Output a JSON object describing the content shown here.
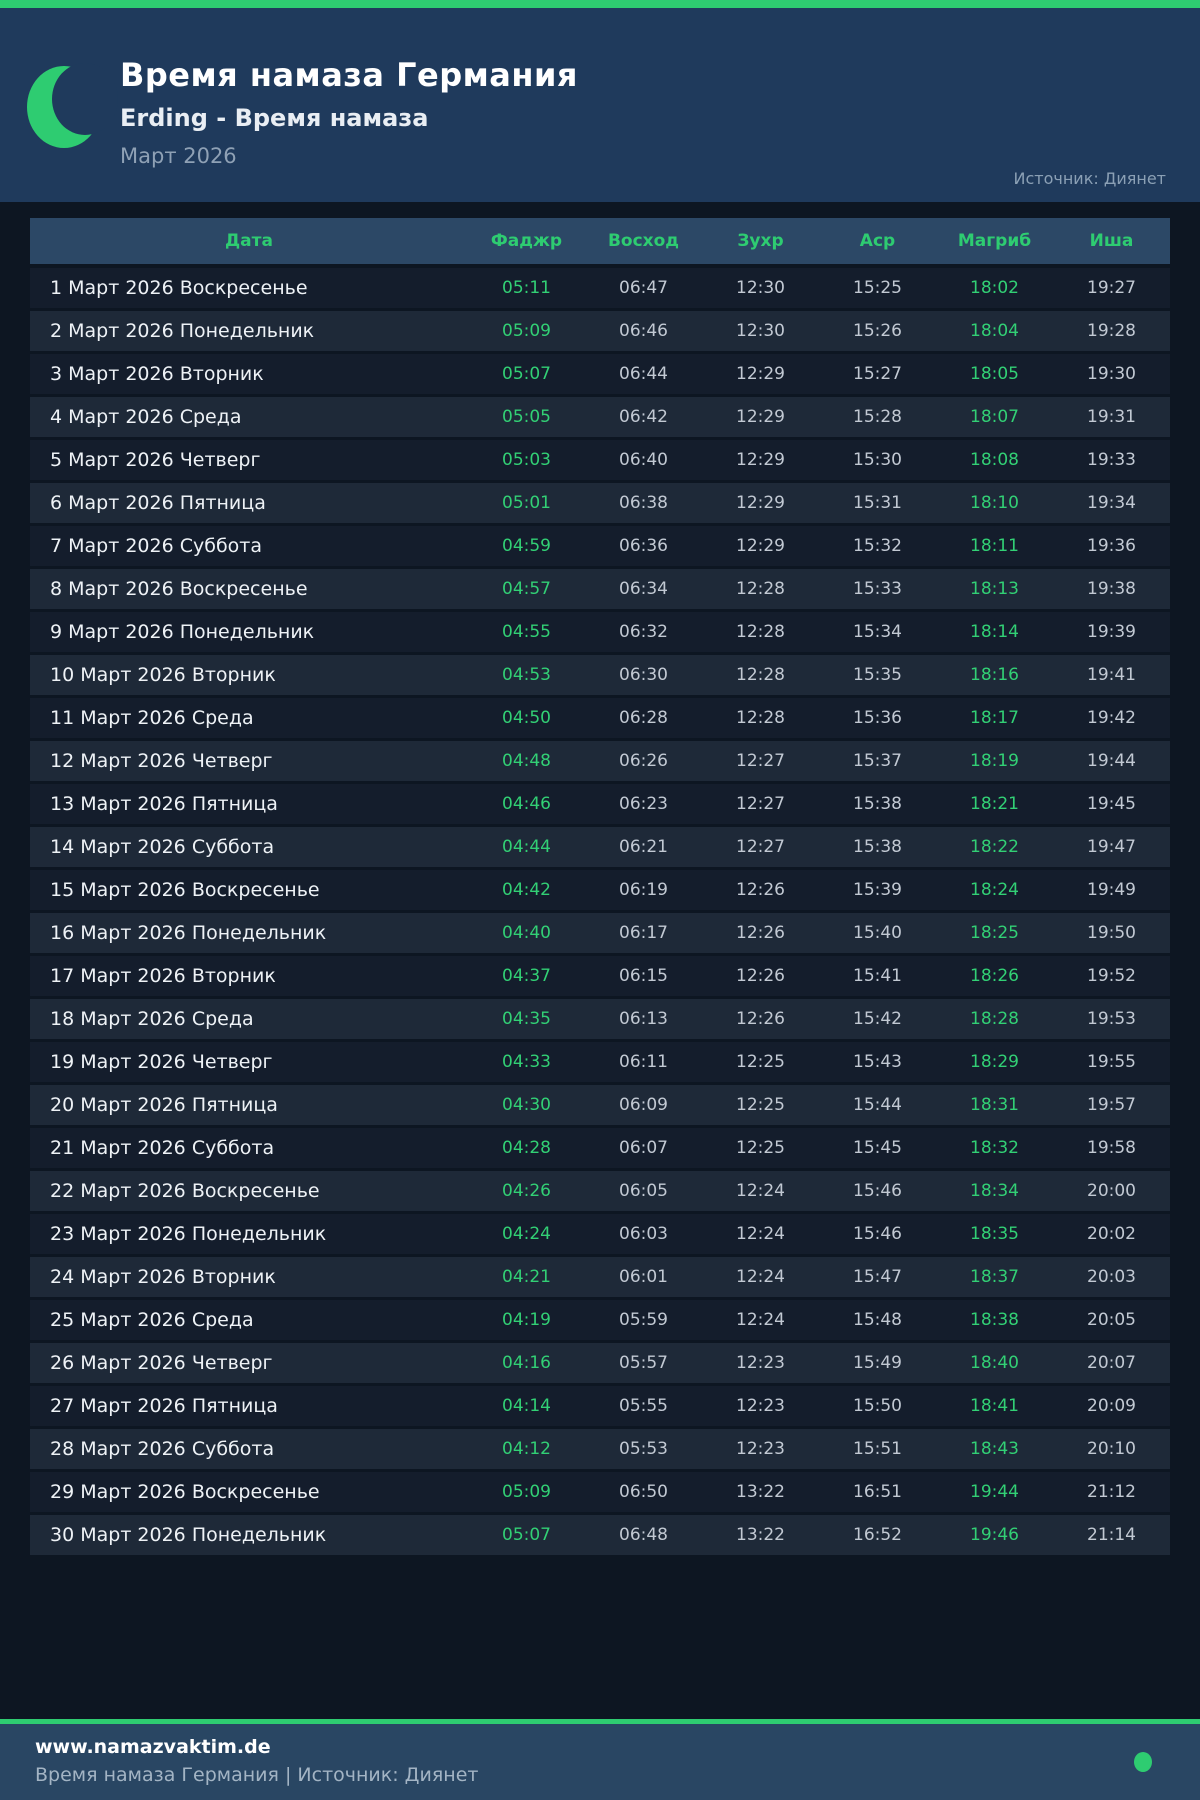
{
  "header": {
    "title": "Время намаза Германия",
    "subtitle": "Erding - Время намаза",
    "month": "Март 2026",
    "source": "Источник: Диянет"
  },
  "table": {
    "columns": [
      "Дата",
      "Фаджр",
      "Восход",
      "Зухр",
      "Аср",
      "Магриб",
      "Иша"
    ],
    "rows": [
      [
        "1 Март 2026 Воскресенье",
        "05:11",
        "06:47",
        "12:30",
        "15:25",
        "18:02",
        "19:27"
      ],
      [
        "2 Март 2026 Понедельник",
        "05:09",
        "06:46",
        "12:30",
        "15:26",
        "18:04",
        "19:28"
      ],
      [
        "3 Март 2026 Вторник",
        "05:07",
        "06:44",
        "12:29",
        "15:27",
        "18:05",
        "19:30"
      ],
      [
        "4 Март 2026 Среда",
        "05:05",
        "06:42",
        "12:29",
        "15:28",
        "18:07",
        "19:31"
      ],
      [
        "5 Март 2026 Четверг",
        "05:03",
        "06:40",
        "12:29",
        "15:30",
        "18:08",
        "19:33"
      ],
      [
        "6 Март 2026 Пятница",
        "05:01",
        "06:38",
        "12:29",
        "15:31",
        "18:10",
        "19:34"
      ],
      [
        "7 Март 2026 Суббота",
        "04:59",
        "06:36",
        "12:29",
        "15:32",
        "18:11",
        "19:36"
      ],
      [
        "8 Март 2026 Воскресенье",
        "04:57",
        "06:34",
        "12:28",
        "15:33",
        "18:13",
        "19:38"
      ],
      [
        "9 Март 2026 Понедельник",
        "04:55",
        "06:32",
        "12:28",
        "15:34",
        "18:14",
        "19:39"
      ],
      [
        "10 Март 2026 Вторник",
        "04:53",
        "06:30",
        "12:28",
        "15:35",
        "18:16",
        "19:41"
      ],
      [
        "11 Март 2026 Среда",
        "04:50",
        "06:28",
        "12:28",
        "15:36",
        "18:17",
        "19:42"
      ],
      [
        "12 Март 2026 Четверг",
        "04:48",
        "06:26",
        "12:27",
        "15:37",
        "18:19",
        "19:44"
      ],
      [
        "13 Март 2026 Пятница",
        "04:46",
        "06:23",
        "12:27",
        "15:38",
        "18:21",
        "19:45"
      ],
      [
        "14 Март 2026 Суббота",
        "04:44",
        "06:21",
        "12:27",
        "15:38",
        "18:22",
        "19:47"
      ],
      [
        "15 Март 2026 Воскресенье",
        "04:42",
        "06:19",
        "12:26",
        "15:39",
        "18:24",
        "19:49"
      ],
      [
        "16 Март 2026 Понедельник",
        "04:40",
        "06:17",
        "12:26",
        "15:40",
        "18:25",
        "19:50"
      ],
      [
        "17 Март 2026 Вторник",
        "04:37",
        "06:15",
        "12:26",
        "15:41",
        "18:26",
        "19:52"
      ],
      [
        "18 Март 2026 Среда",
        "04:35",
        "06:13",
        "12:26",
        "15:42",
        "18:28",
        "19:53"
      ],
      [
        "19 Март 2026 Четверг",
        "04:33",
        "06:11",
        "12:25",
        "15:43",
        "18:29",
        "19:55"
      ],
      [
        "20 Март 2026 Пятница",
        "04:30",
        "06:09",
        "12:25",
        "15:44",
        "18:31",
        "19:57"
      ],
      [
        "21 Март 2026 Суббота",
        "04:28",
        "06:07",
        "12:25",
        "15:45",
        "18:32",
        "19:58"
      ],
      [
        "22 Март 2026 Воскресенье",
        "04:26",
        "06:05",
        "12:24",
        "15:46",
        "18:34",
        "20:00"
      ],
      [
        "23 Март 2026 Понедельник",
        "04:24",
        "06:03",
        "12:24",
        "15:46",
        "18:35",
        "20:02"
      ],
      [
        "24 Март 2026 Вторник",
        "04:21",
        "06:01",
        "12:24",
        "15:47",
        "18:37",
        "20:03"
      ],
      [
        "25 Март 2026 Среда",
        "04:19",
        "05:59",
        "12:24",
        "15:48",
        "18:38",
        "20:05"
      ],
      [
        "26 Март 2026 Четверг",
        "04:16",
        "05:57",
        "12:23",
        "15:49",
        "18:40",
        "20:07"
      ],
      [
        "27 Март 2026 Пятница",
        "04:14",
        "05:55",
        "12:23",
        "15:50",
        "18:41",
        "20:09"
      ],
      [
        "28 Март 2026 Суббота",
        "04:12",
        "05:53",
        "12:23",
        "15:51",
        "18:43",
        "20:10"
      ],
      [
        "29 Март 2026 Воскресенье",
        "05:09",
        "06:50",
        "13:22",
        "16:51",
        "19:44",
        "21:12"
      ],
      [
        "30 Март 2026 Понедельник",
        "05:07",
        "06:48",
        "13:22",
        "16:52",
        "19:46",
        "21:14"
      ]
    ]
  },
  "footer": {
    "url": "www.namazvaktim.de",
    "line": "Время намаза Германия | Источник: Диянет"
  },
  "colors": {
    "accent_green": "#2ecc71",
    "header_bg": "#1f3a5c",
    "page_bg": "#0d1622",
    "table_header_bg": "#2c4866",
    "row_odd_bg": "#141d2c",
    "row_even_bg": "#1e2938",
    "footer_bg": "#294663",
    "time_green": "#32d075",
    "time_gray": "#c2c9d3"
  }
}
